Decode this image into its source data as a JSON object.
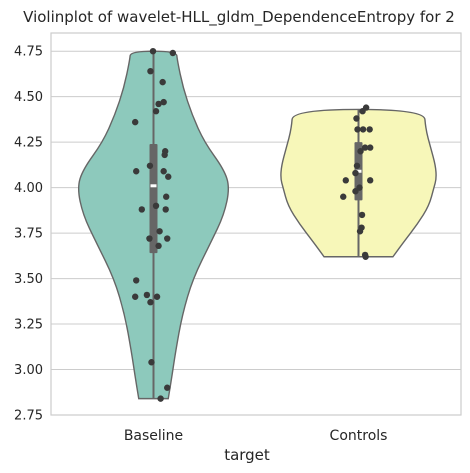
{
  "chart_data": {
    "type": "violin",
    "title": "Violinplot of wavelet-HLL_gldm_DependenceEntropy for 2",
    "xlabel": "target",
    "ylabel": "",
    "ylim": [
      2.75,
      4.85
    ],
    "yticks": [
      2.75,
      3.0,
      3.25,
      3.5,
      3.75,
      4.0,
      4.25,
      4.5,
      4.75
    ],
    "ytick_labels": [
      "2.75",
      "3.00",
      "3.25",
      "3.50",
      "3.75",
      "4.00",
      "4.25",
      "4.50",
      "4.75"
    ],
    "categories": [
      "Baseline",
      "Controls"
    ],
    "grid": "horizontal",
    "series": [
      {
        "category": "Baseline",
        "color": "#8dc9bc",
        "min": 2.84,
        "max": 4.75,
        "q1": 3.64,
        "median": 4.01,
        "q3": 4.24,
        "profile": [
          [
            2.84,
            0.18
          ],
          [
            2.95,
            0.22
          ],
          [
            3.1,
            0.27
          ],
          [
            3.3,
            0.35
          ],
          [
            3.5,
            0.48
          ],
          [
            3.7,
            0.7
          ],
          [
            3.85,
            0.86
          ],
          [
            4.0,
            0.93
          ],
          [
            4.1,
            0.86
          ],
          [
            4.25,
            0.62
          ],
          [
            4.4,
            0.47
          ],
          [
            4.55,
            0.36
          ],
          [
            4.7,
            0.29
          ],
          [
            4.75,
            0.28
          ]
        ],
        "points": [
          [
            -0.01,
            4.75
          ],
          [
            0.38,
            4.74
          ],
          [
            -0.06,
            4.64
          ],
          [
            0.18,
            4.58
          ],
          [
            0.2,
            4.47
          ],
          [
            0.1,
            4.46
          ],
          [
            0.05,
            4.42
          ],
          [
            -0.36,
            4.36
          ],
          [
            0.23,
            4.2
          ],
          [
            0.22,
            4.18
          ],
          [
            -0.07,
            4.12
          ],
          [
            -0.34,
            4.09
          ],
          [
            0.2,
            4.09
          ],
          [
            0.29,
            4.06
          ],
          [
            0.25,
            3.95
          ],
          [
            0.05,
            3.9
          ],
          [
            -0.23,
            3.88
          ],
          [
            0.24,
            3.88
          ],
          [
            0.12,
            3.76
          ],
          [
            -0.08,
            3.72
          ],
          [
            0.27,
            3.72
          ],
          [
            0.1,
            3.68
          ],
          [
            -0.34,
            3.49
          ],
          [
            -0.13,
            3.41
          ],
          [
            0.07,
            3.4
          ],
          [
            -0.36,
            3.4
          ],
          [
            -0.06,
            3.37
          ],
          [
            -0.04,
            3.04
          ],
          [
            0.27,
            2.9
          ],
          [
            0.14,
            2.84
          ]
        ]
      },
      {
        "category": "Controls",
        "color": "#f7f7b9",
        "min": 3.62,
        "max": 4.43,
        "q1": 3.93,
        "median": 4.09,
        "q3": 4.25,
        "profile": [
          [
            3.62,
            0.42
          ],
          [
            3.7,
            0.55
          ],
          [
            3.8,
            0.72
          ],
          [
            3.9,
            0.86
          ],
          [
            4.0,
            0.92
          ],
          [
            4.05,
            0.95
          ],
          [
            4.12,
            0.94
          ],
          [
            4.22,
            0.88
          ],
          [
            4.32,
            0.82
          ],
          [
            4.43,
            0.8
          ]
        ],
        "points": [
          [
            0.15,
            4.44
          ],
          [
            0.08,
            4.42
          ],
          [
            -0.04,
            4.38
          ],
          [
            0.09,
            4.32
          ],
          [
            0.22,
            4.32
          ],
          [
            -0.02,
            4.32
          ],
          [
            0.13,
            4.22
          ],
          [
            0.23,
            4.22
          ],
          [
            0.04,
            4.2
          ],
          [
            -0.03,
            4.12
          ],
          [
            -0.06,
            4.08
          ],
          [
            -0.25,
            4.04
          ],
          [
            0.23,
            4.04
          ],
          [
            0.02,
            4.0
          ],
          [
            -0.06,
            3.98
          ],
          [
            -0.3,
            3.95
          ],
          [
            0.07,
            3.85
          ],
          [
            0.06,
            3.78
          ],
          [
            0.03,
            3.76
          ],
          [
            0.13,
            3.63
          ],
          [
            0.14,
            3.62
          ]
        ]
      }
    ]
  }
}
